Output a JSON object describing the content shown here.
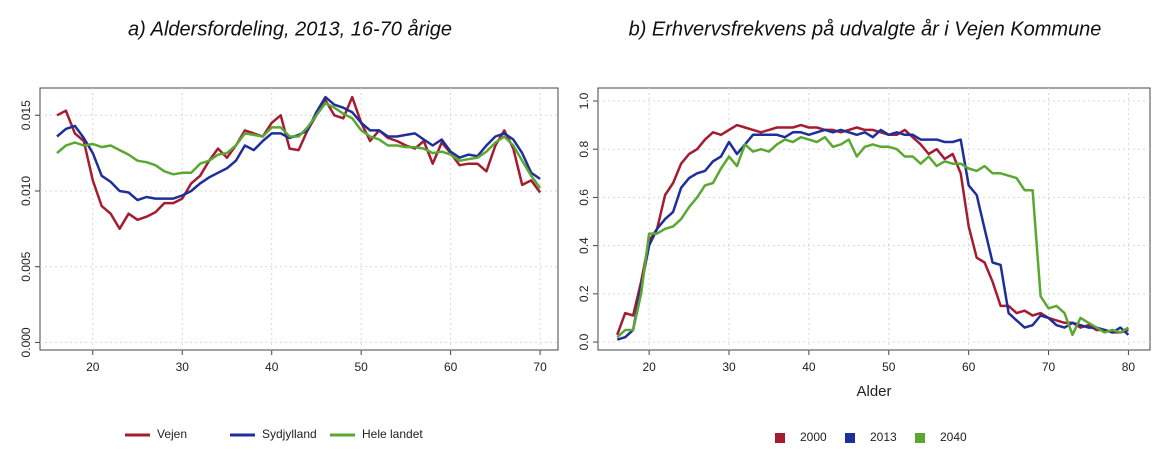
{
  "chart_data": [
    {
      "type": "line",
      "title": "a) Aldersfordeling, 2013, 16-70 årige",
      "x": [
        16,
        17,
        18,
        19,
        20,
        21,
        22,
        23,
        24,
        25,
        26,
        27,
        28,
        29,
        30,
        31,
        32,
        33,
        34,
        35,
        36,
        37,
        38,
        39,
        40,
        41,
        42,
        43,
        44,
        45,
        46,
        47,
        48,
        49,
        50,
        51,
        52,
        53,
        54,
        55,
        56,
        57,
        58,
        59,
        60,
        61,
        62,
        63,
        64,
        65,
        66,
        67,
        68,
        69,
        70
      ],
      "series": [
        {
          "name": "Vejen",
          "color": "#a51c30",
          "values": [
            0.015,
            0.0153,
            0.0138,
            0.0133,
            0.0107,
            0.009,
            0.0085,
            0.0075,
            0.0085,
            0.0081,
            0.0083,
            0.0086,
            0.0092,
            0.0092,
            0.0095,
            0.0105,
            0.011,
            0.012,
            0.0128,
            0.0122,
            0.013,
            0.014,
            0.0138,
            0.0136,
            0.0145,
            0.015,
            0.0128,
            0.0127,
            0.014,
            0.015,
            0.016,
            0.015,
            0.0148,
            0.0162,
            0.0145,
            0.0133,
            0.014,
            0.0135,
            0.0133,
            0.013,
            0.0128,
            0.0133,
            0.0118,
            0.0132,
            0.0125,
            0.0117,
            0.0118,
            0.0118,
            0.0113,
            0.013,
            0.014,
            0.0128,
            0.0104,
            0.0107,
            0.0099
          ]
        },
        {
          "name": "Sydjylland",
          "color": "#1f2f9a",
          "values": [
            0.0136,
            0.0141,
            0.0143,
            0.0135,
            0.0125,
            0.011,
            0.0106,
            0.01,
            0.0099,
            0.0094,
            0.0096,
            0.0095,
            0.0095,
            0.0095,
            0.0097,
            0.01,
            0.0105,
            0.0109,
            0.0112,
            0.0115,
            0.012,
            0.013,
            0.0127,
            0.0133,
            0.0138,
            0.0138,
            0.0135,
            0.0137,
            0.014,
            0.0152,
            0.0162,
            0.0157,
            0.0155,
            0.0152,
            0.0145,
            0.014,
            0.014,
            0.0136,
            0.0136,
            0.0137,
            0.0138,
            0.0134,
            0.013,
            0.0134,
            0.0126,
            0.0122,
            0.0124,
            0.0123,
            0.013,
            0.0136,
            0.0138,
            0.0134,
            0.0125,
            0.0112,
            0.0108
          ]
        },
        {
          "name": "Hele landet",
          "color": "#5aa832",
          "values": [
            0.0125,
            0.013,
            0.0132,
            0.013,
            0.0131,
            0.0129,
            0.013,
            0.0127,
            0.0124,
            0.012,
            0.0119,
            0.0117,
            0.0113,
            0.0111,
            0.0112,
            0.0112,
            0.0118,
            0.012,
            0.0124,
            0.0125,
            0.013,
            0.0138,
            0.0137,
            0.0136,
            0.0142,
            0.0142,
            0.0136,
            0.0136,
            0.0142,
            0.015,
            0.0158,
            0.0155,
            0.0151,
            0.0148,
            0.014,
            0.0136,
            0.0134,
            0.013,
            0.013,
            0.0129,
            0.0129,
            0.0128,
            0.0125,
            0.0126,
            0.0124,
            0.012,
            0.0121,
            0.0122,
            0.0126,
            0.0132,
            0.0136,
            0.013,
            0.012,
            0.011,
            0.0102
          ]
        }
      ],
      "xlim": [
        14.1,
        72
      ],
      "xticks": [
        20,
        30,
        40,
        50,
        60,
        70
      ],
      "ylim": [
        -0.0005,
        0.0168
      ],
      "yticks": [
        {
          "value": 0,
          "label": "0.000"
        },
        {
          "value": 0.005,
          "label": "0.005"
        },
        {
          "value": 0.01,
          "label": "0.010"
        },
        {
          "value": 0.015,
          "label": "0.015"
        }
      ],
      "grid": true,
      "legend": "bottom",
      "legend_marker": "line"
    },
    {
      "type": "line",
      "title": "b) Erhvervsfrekvens på udvalgte år i Vejen Kommune",
      "x_label": "Alder",
      "x": [
        16,
        17,
        18,
        19,
        20,
        21,
        22,
        23,
        24,
        25,
        26,
        27,
        28,
        29,
        30,
        31,
        32,
        33,
        34,
        35,
        36,
        37,
        38,
        39,
        40,
        41,
        42,
        43,
        44,
        45,
        46,
        47,
        48,
        49,
        50,
        51,
        52,
        53,
        54,
        55,
        56,
        57,
        58,
        59,
        60,
        61,
        62,
        63,
        64,
        65,
        66,
        67,
        68,
        69,
        70,
        71,
        72,
        73,
        74,
        75,
        76,
        77,
        78,
        79,
        80
      ],
      "series": [
        {
          "name": "2000",
          "color": "#a51c30",
          "values": [
            0.03,
            0.12,
            0.11,
            0.25,
            0.42,
            0.47,
            0.61,
            0.66,
            0.74,
            0.78,
            0.8,
            0.84,
            0.87,
            0.86,
            0.88,
            0.9,
            0.89,
            0.88,
            0.87,
            0.88,
            0.89,
            0.89,
            0.89,
            0.9,
            0.89,
            0.89,
            0.88,
            0.88,
            0.87,
            0.88,
            0.89,
            0.88,
            0.88,
            0.87,
            0.86,
            0.86,
            0.88,
            0.85,
            0.82,
            0.78,
            0.8,
            0.76,
            0.78,
            0.7,
            0.48,
            0.35,
            0.33,
            0.25,
            0.15,
            0.15,
            0.12,
            0.13,
            0.11,
            0.12,
            0.1,
            0.09,
            0.08,
            0.08,
            0.06,
            0.07,
            0.05,
            0.05,
            0.04,
            0.04,
            0.05
          ]
        },
        {
          "name": "2013",
          "color": "#1f2f9a",
          "values": [
            0.01,
            0.02,
            0.05,
            0.23,
            0.4,
            0.47,
            0.51,
            0.54,
            0.64,
            0.68,
            0.7,
            0.71,
            0.75,
            0.77,
            0.83,
            0.78,
            0.82,
            0.86,
            0.86,
            0.86,
            0.86,
            0.85,
            0.87,
            0.87,
            0.86,
            0.87,
            0.88,
            0.87,
            0.88,
            0.87,
            0.86,
            0.87,
            0.85,
            0.88,
            0.86,
            0.87,
            0.86,
            0.86,
            0.84,
            0.84,
            0.84,
            0.83,
            0.83,
            0.84,
            0.65,
            0.61,
            0.47,
            0.33,
            0.32,
            0.12,
            0.09,
            0.06,
            0.07,
            0.11,
            0.1,
            0.07,
            0.06,
            0.08,
            0.07,
            0.06,
            0.06,
            0.05,
            0.04,
            0.06,
            0.03
          ]
        },
        {
          "name": "2040",
          "color": "#5aa832",
          "values": [
            0.02,
            0.05,
            0.05,
            0.2,
            0.45,
            0.45,
            0.47,
            0.48,
            0.51,
            0.56,
            0.6,
            0.65,
            0.66,
            0.72,
            0.77,
            0.73,
            0.82,
            0.79,
            0.8,
            0.79,
            0.82,
            0.84,
            0.83,
            0.85,
            0.84,
            0.83,
            0.85,
            0.81,
            0.82,
            0.84,
            0.77,
            0.81,
            0.82,
            0.81,
            0.81,
            0.8,
            0.77,
            0.77,
            0.74,
            0.77,
            0.73,
            0.75,
            0.74,
            0.74,
            0.72,
            0.71,
            0.73,
            0.7,
            0.7,
            0.69,
            0.68,
            0.63,
            0.63,
            0.19,
            0.14,
            0.15,
            0.12,
            0.03,
            0.1,
            0.08,
            0.06,
            0.04,
            0.05,
            0.04,
            0.06
          ]
        }
      ],
      "xlim": [
        13.6,
        82.7
      ],
      "xticks": [
        20,
        30,
        40,
        50,
        60,
        70,
        80
      ],
      "ylim": [
        -0.033,
        1.054
      ],
      "yticks": [
        {
          "value": 0,
          "label": "0.0"
        },
        {
          "value": 0.2,
          "label": "0.2"
        },
        {
          "value": 0.4,
          "label": "0.4"
        },
        {
          "value": 0.6,
          "label": "0.6"
        },
        {
          "value": 0.8,
          "label": "0.8"
        },
        {
          "value": 1,
          "label": "1.0"
        }
      ],
      "grid": true,
      "legend": "bottom",
      "legend_marker": "square"
    }
  ]
}
